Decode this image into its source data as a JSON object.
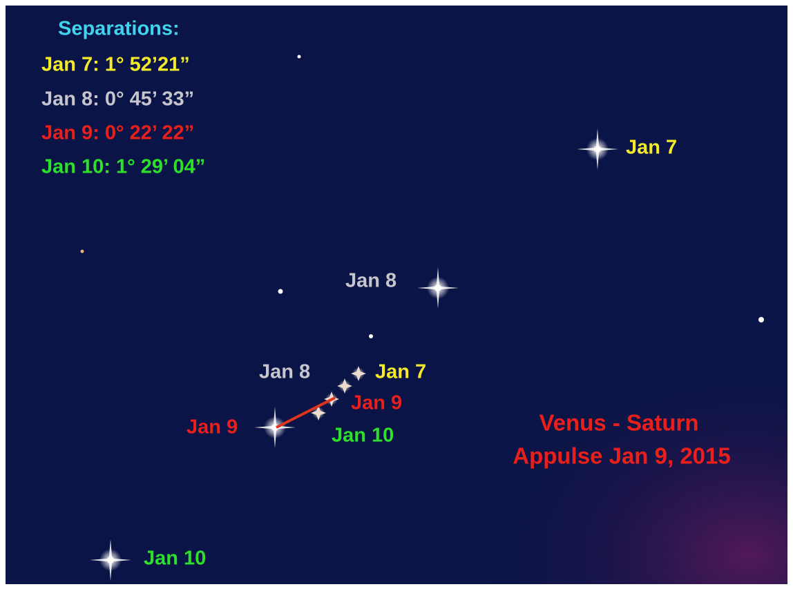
{
  "legend": {
    "title": "Separations:",
    "items": [
      "Jan 7: 1° 52’21”",
      "Jan 8: 0° 45’ 33”",
      "Jan 9: 0° 22’ 22”",
      "Jan 10: 1° 29’ 04”"
    ]
  },
  "venus_labels": [
    "Jan 7",
    "Jan 8",
    "Jan 9",
    "Jan 10"
  ],
  "saturn_labels": [
    "Jan 7",
    "Jan 8",
    "Jan 9",
    "Jan 10"
  ],
  "caption": [
    "Venus - Saturn",
    "Appulse Jan 9, 2015"
  ]
}
